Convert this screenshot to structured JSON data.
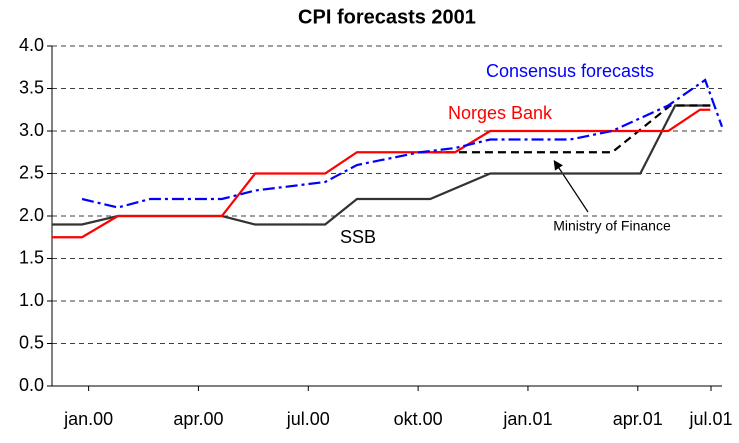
{
  "chart_data": {
    "type": "line",
    "title": "CPI forecasts 2001",
    "xlim": [
      -1,
      17.3
    ],
    "xticks": [
      {
        "value": 0,
        "label": "jan.00"
      },
      {
        "value": 3,
        "label": "apr.00"
      },
      {
        "value": 6,
        "label": "jul.00"
      },
      {
        "value": 9,
        "label": "okt.00"
      },
      {
        "value": 12,
        "label": "jan.01"
      },
      {
        "value": 15,
        "label": "apr.01"
      },
      {
        "value": 17,
        "label": "jul.01"
      }
    ],
    "ylim": [
      0,
      4
    ],
    "yticks": [
      {
        "value": 0,
        "label": "0.0"
      },
      {
        "value": 0.5,
        "label": "0.5"
      },
      {
        "value": 1,
        "label": "1.0"
      },
      {
        "value": 1.5,
        "label": "1.5"
      },
      {
        "value": 2,
        "label": "2.0"
      },
      {
        "value": 2.5,
        "label": "2.5"
      },
      {
        "value": 3,
        "label": "3.0"
      },
      {
        "value": 3.5,
        "label": "3.5"
      },
      {
        "value": 4,
        "label": "4.0"
      }
    ],
    "grid": true,
    "series": [
      {
        "name": "Consensus forecasts",
        "color": "#0000ff",
        "dash": "dashdot",
        "x": [
          -0.18,
          0.8,
          1.68,
          3.64,
          4.55,
          6.46,
          7.33,
          9.05,
          10.01,
          10.97,
          13.15,
          14.3,
          15.83,
          16.84,
          17.3
        ],
        "values": [
          2.2,
          2.1,
          2.2,
          2.2,
          2.3,
          2.4,
          2.6,
          2.75,
          2.8,
          2.9,
          2.9,
          3.0,
          3.3,
          3.6,
          3.05
        ]
      },
      {
        "name": "Norges Bank",
        "color": "#ff0000",
        "dash": "solid",
        "x": [
          -1,
          -0.18,
          0.8,
          3.64,
          4.55,
          6.46,
          7.33,
          10.01,
          10.97,
          15.83,
          16.7,
          16.98
        ],
        "values": [
          1.75,
          1.75,
          2.0,
          2.0,
          2.5,
          2.5,
          2.75,
          2.75,
          3.0,
          3.0,
          3.25,
          3.25
        ]
      },
      {
        "name": "Ministry of Finance",
        "color": "#000000",
        "dash": "dashed",
        "x": [
          9.05,
          14.3,
          15.89,
          16.98
        ],
        "values": [
          2.75,
          2.75,
          3.3,
          3.3
        ]
      },
      {
        "name": "SSB",
        "color": "#333333",
        "dash": "solid",
        "x": [
          -1,
          -0.18,
          0.8,
          3.64,
          4.55,
          6.46,
          7.33,
          9.33,
          10.97,
          15.07,
          16.02,
          16.98
        ],
        "values": [
          1.9,
          1.9,
          2.0,
          2.0,
          1.9,
          1.9,
          2.2,
          2.2,
          2.5,
          2.5,
          3.3,
          3.3
        ]
      }
    ]
  }
}
